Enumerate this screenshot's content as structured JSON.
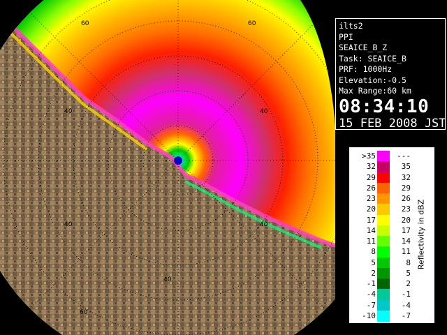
{
  "info": {
    "station": "ilts2",
    "scan_type": "PPI",
    "product": "SEAICE_B_Z",
    "task": "Task: SEAICE_B",
    "prf": "PRF: 1000Hz",
    "elevation": "Elevation:-0.5",
    "max_range": "Max Range:60 km",
    "time": "08:34:10",
    "date": "15 FEB 2008 JST"
  },
  "range_labels": [
    "60",
    "60",
    "60",
    "40",
    "40",
    "40",
    "40",
    "40"
  ],
  "legend": {
    "title": "Reflectivity in dBZ",
    "rows": [
      {
        "lo": ">35",
        "hi": "---",
        "color": "#ff00ff"
      },
      {
        "lo": "32",
        "hi": "35",
        "color": "#c80064"
      },
      {
        "lo": "29",
        "hi": "32",
        "color": "#ff0000"
      },
      {
        "lo": "26",
        "hi": "29",
        "color": "#ff6400"
      },
      {
        "lo": "23",
        "hi": "26",
        "color": "#ff9600"
      },
      {
        "lo": "20",
        "hi": "23",
        "color": "#ffc800"
      },
      {
        "lo": "17",
        "hi": "20",
        "color": "#ffff00"
      },
      {
        "lo": "14",
        "hi": "17",
        "color": "#c8ff00"
      },
      {
        "lo": "11",
        "hi": "14",
        "color": "#64ff00"
      },
      {
        "lo": "8",
        "hi": "11",
        "color": "#00ff00"
      },
      {
        "lo": "5",
        "hi": "8",
        "color": "#00c800"
      },
      {
        "lo": "2",
        "hi": "5",
        "color": "#009600"
      },
      {
        "lo": "-1",
        "hi": "2",
        "color": "#006400"
      },
      {
        "lo": "-4",
        "hi": "-1",
        "color": "#00c896"
      },
      {
        "lo": "-7",
        "hi": "-4",
        "color": "#00c8c8"
      },
      {
        "lo": "-10",
        "hi": "-7",
        "color": "#00ffff"
      }
    ]
  }
}
